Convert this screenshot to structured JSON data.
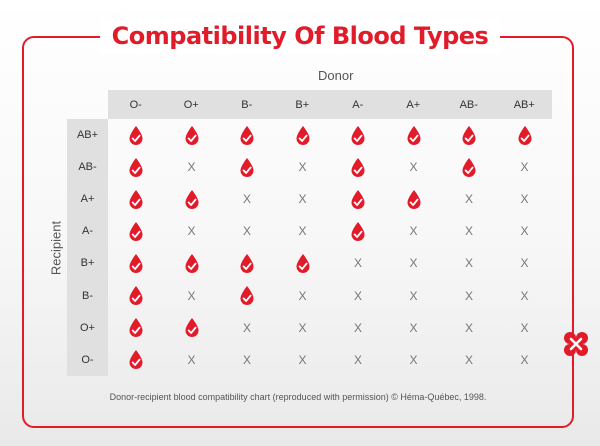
{
  "title": "Compatibility Of Blood Types",
  "donor_label": "Donor",
  "recipient_label": "Recipient",
  "donors": [
    "O-",
    "O+",
    "B-",
    "B+",
    "A-",
    "A+",
    "AB-",
    "AB+"
  ],
  "recipients": [
    "AB+",
    "AB-",
    "A+",
    "A-",
    "B+",
    "B-",
    "O+",
    "O-"
  ],
  "compatibility": [
    [
      1,
      1,
      1,
      1,
      1,
      1,
      1,
      1
    ],
    [
      1,
      0,
      1,
      0,
      1,
      0,
      1,
      0
    ],
    [
      1,
      1,
      0,
      0,
      1,
      1,
      0,
      0
    ],
    [
      1,
      0,
      0,
      0,
      1,
      0,
      0,
      0
    ],
    [
      1,
      1,
      1,
      1,
      0,
      0,
      0,
      0
    ],
    [
      1,
      0,
      1,
      0,
      0,
      0,
      0,
      0
    ],
    [
      1,
      1,
      0,
      0,
      0,
      0,
      0,
      0
    ],
    [
      1,
      0,
      0,
      0,
      0,
      0,
      0,
      0
    ]
  ],
  "incompatible_symbol": "X",
  "compatible_icon": "blood-drop-check-icon",
  "footnote": "Donor-recipient blood compatibility chart (reproduced with permission) © Héma-Québec, 1998.",
  "colors": {
    "accent": "#e21b2a",
    "header_bg": "#e0e0e0",
    "x_mark": "#777777"
  }
}
